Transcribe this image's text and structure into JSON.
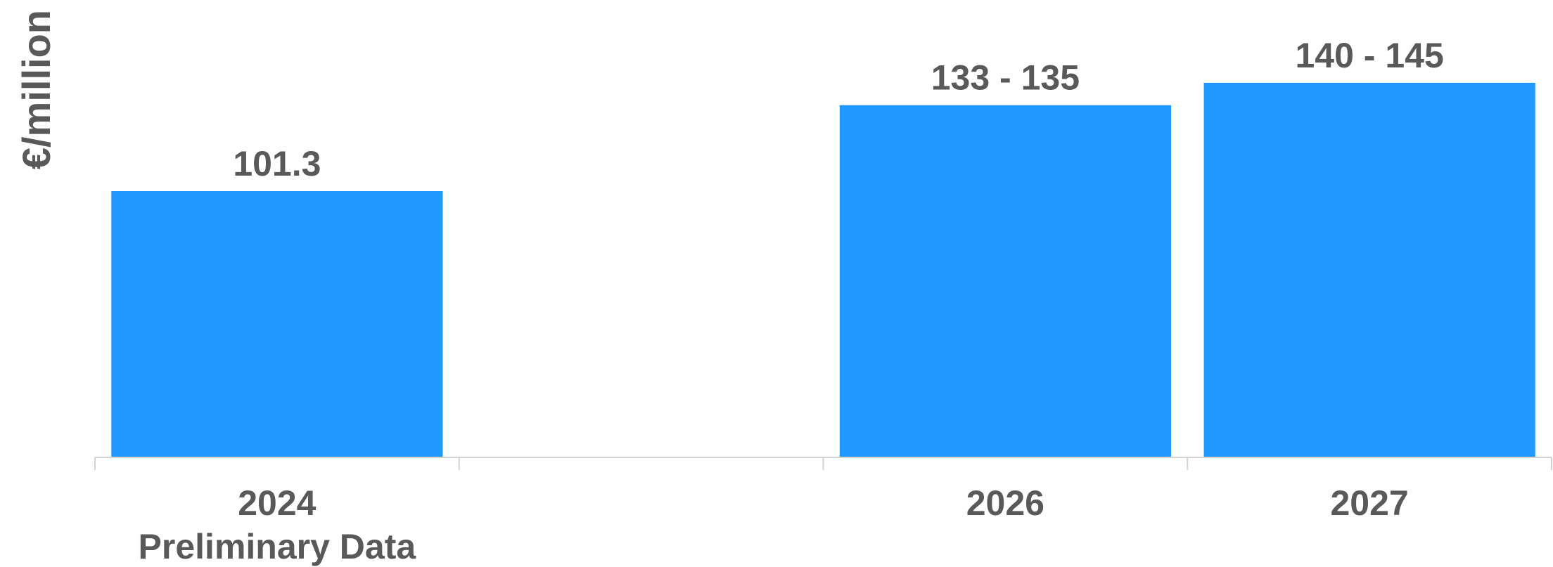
{
  "chart_data": {
    "type": "bar",
    "y_label": "€/million",
    "categories": [
      "2024",
      null,
      "2026",
      "2027"
    ],
    "category_notes": [
      "Preliminary Data",
      null,
      null,
      null
    ],
    "values": [
      101.3,
      null,
      134,
      142.5
    ],
    "value_labels": [
      "101.3",
      null,
      "133 - 135",
      "140 - 145"
    ],
    "color": "#2098fe",
    "ylim": [
      0,
      174
    ]
  }
}
